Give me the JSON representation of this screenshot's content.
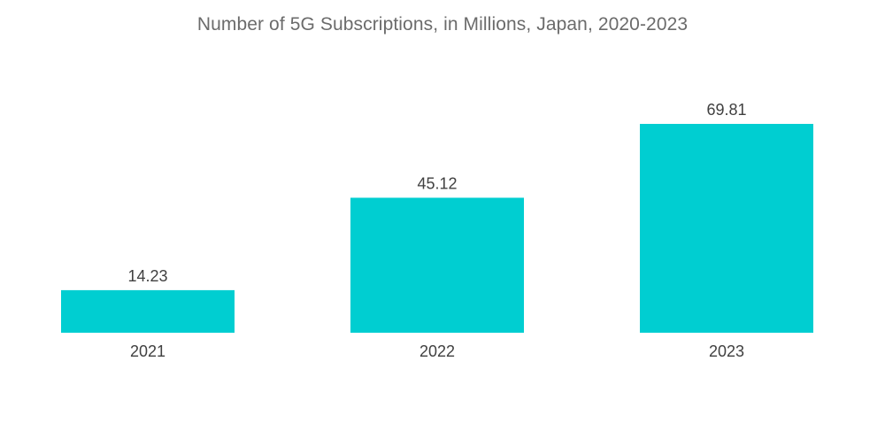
{
  "chart_data": {
    "type": "bar",
    "title": "Number of 5G Subscriptions, in Millions, Japan, 2020-2023",
    "categories": [
      "2021",
      "2022",
      "2023"
    ],
    "values": [
      14.23,
      45.12,
      69.81
    ],
    "value_labels": [
      "14.23",
      "45.12",
      "69.81"
    ],
    "xlabel": "",
    "ylabel": "",
    "ylim": [
      0,
      69.81
    ],
    "grid": false,
    "legend": "none",
    "bar_color": "#00CED1"
  }
}
